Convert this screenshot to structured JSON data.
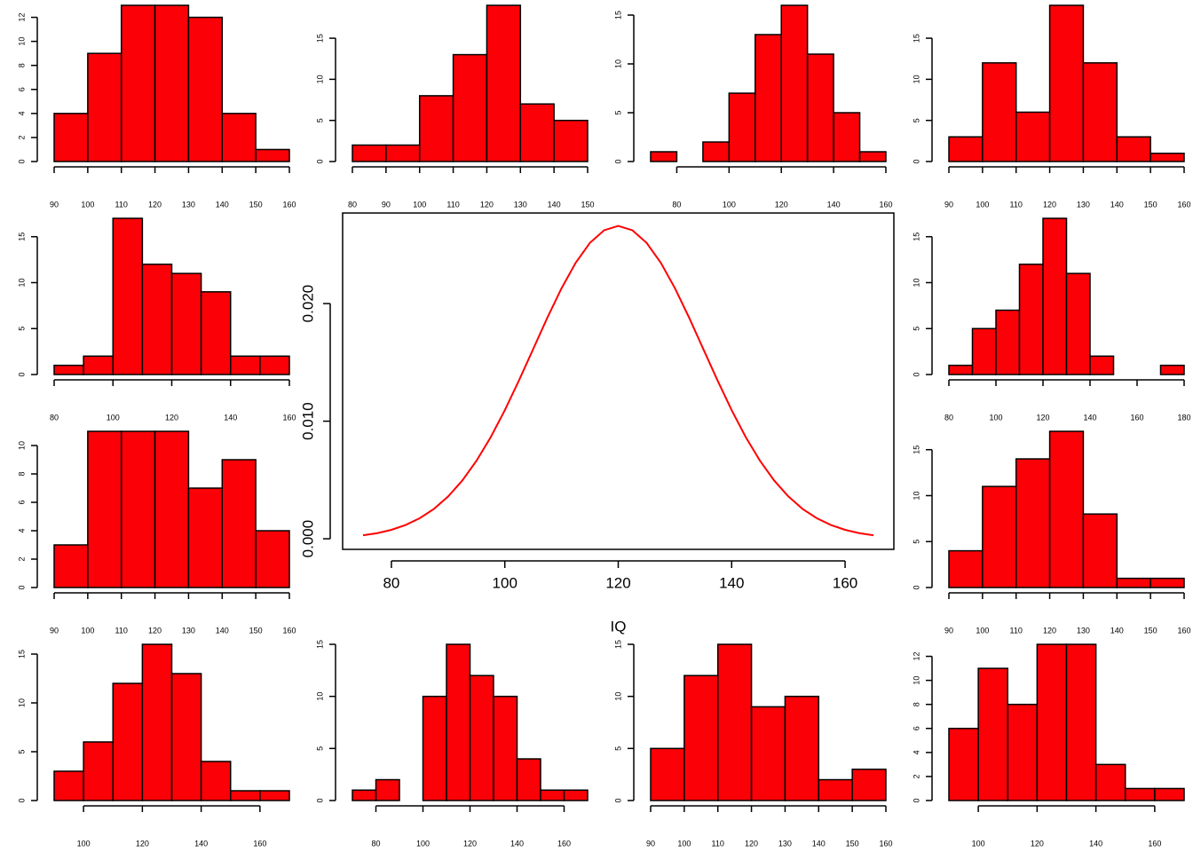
{
  "chart_data": [
    {
      "type": "histogram",
      "bins": [
        90,
        100,
        110,
        120,
        130,
        140,
        150,
        160
      ],
      "values": [
        4,
        9,
        13,
        13,
        12,
        4,
        1
      ],
      "color": "#fb0007",
      "xlim": [
        90,
        160
      ],
      "xticks": [
        90,
        100,
        110,
        120,
        130,
        140,
        150,
        160
      ],
      "ylim": [
        0,
        13
      ],
      "yticks": [
        0,
        2,
        4,
        6,
        8,
        10,
        12
      ]
    },
    {
      "type": "histogram",
      "bins": [
        80,
        90,
        100,
        110,
        120,
        130,
        140,
        150
      ],
      "values": [
        2,
        2,
        8,
        13,
        19,
        7,
        5
      ],
      "color": "#fb0007",
      "xlim": [
        80,
        150
      ],
      "xticks": [
        80,
        90,
        100,
        110,
        120,
        130,
        140,
        150
      ],
      "ylim": [
        0,
        19
      ],
      "yticks": [
        0,
        5,
        10,
        15
      ]
    },
    {
      "type": "histogram",
      "bins": [
        70,
        80,
        90,
        100,
        110,
        120,
        130,
        140,
        150,
        160
      ],
      "values": [
        1,
        0,
        2,
        7,
        13,
        16,
        11,
        5,
        1
      ],
      "color": "#fb0007",
      "xlim": [
        70,
        160
      ],
      "xticks": [
        80,
        100,
        120,
        140,
        160
      ],
      "ylim": [
        0,
        16
      ],
      "yticks": [
        0,
        5,
        10,
        15
      ]
    },
    {
      "type": "histogram",
      "bins": [
        90,
        100,
        110,
        120,
        130,
        140,
        150,
        160
      ],
      "values": [
        3,
        12,
        6,
        19,
        12,
        3,
        1
      ],
      "color": "#fb0007",
      "xlim": [
        90,
        160
      ],
      "xticks": [
        90,
        100,
        110,
        120,
        130,
        140,
        150,
        160
      ],
      "ylim": [
        0,
        19
      ],
      "yticks": [
        0,
        5,
        10,
        15
      ]
    },
    {
      "type": "histogram",
      "bins": [
        80,
        90,
        100,
        110,
        120,
        130,
        140,
        150,
        160
      ],
      "values": [
        1,
        2,
        17,
        12,
        11,
        9,
        2,
        2
      ],
      "color": "#fb0007",
      "xlim": [
        80,
        160
      ],
      "xticks": [
        80,
        100,
        120,
        140,
        160
      ],
      "ylim": [
        0,
        17
      ],
      "yticks": [
        0,
        5,
        10,
        15
      ]
    },
    {
      "type": "line",
      "x": [
        75,
        77.5,
        80,
        82.5,
        85,
        87.5,
        90,
        92.5,
        95,
        97.5,
        100,
        102.5,
        105,
        107.5,
        110,
        112.5,
        115,
        117.5,
        120,
        122.5,
        125,
        127.5,
        130,
        132.5,
        135,
        137.5,
        140,
        142.5,
        145,
        147.5,
        150,
        152.5,
        155,
        157.5,
        160,
        162.5,
        165
      ],
      "values": [
        0.0003,
        0.00048,
        0.00076,
        0.00117,
        0.00175,
        0.00254,
        0.0036,
        0.00495,
        0.00663,
        0.00863,
        0.01093,
        0.01347,
        0.01613,
        0.0188,
        0.0213,
        0.02347,
        0.02516,
        0.02623,
        0.0266,
        0.02623,
        0.02516,
        0.02347,
        0.0213,
        0.0188,
        0.01613,
        0.01347,
        0.01093,
        0.00863,
        0.00663,
        0.00495,
        0.0036,
        0.00254,
        0.00175,
        0.00117,
        0.00076,
        0.00048,
        0.0003
      ],
      "color": "#ff0000",
      "xlim": [
        71.4,
        168.6
      ],
      "xticks": [
        80,
        100,
        120,
        140,
        160
      ],
      "ylim": [
        -0.0009,
        0.0277
      ],
      "yticks": [
        {
          "value": 0,
          "label": "0.000"
        },
        {
          "value": 0.01,
          "label": "0.010"
        },
        {
          "value": 0.02,
          "label": "0.020"
        }
      ],
      "xlabel": "IQ"
    },
    {
      "type": "histogram",
      "bins": [
        80,
        90,
        100,
        110,
        120,
        130,
        140,
        150,
        160,
        170,
        180
      ],
      "values": [
        1,
        5,
        7,
        12,
        17,
        11,
        2,
        0,
        0,
        1
      ],
      "color": "#fb0007",
      "xlim": [
        80,
        180
      ],
      "xticks": [
        80,
        100,
        120,
        140,
        160,
        180
      ],
      "ylim": [
        0,
        17
      ],
      "yticks": [
        0,
        5,
        10,
        15
      ]
    },
    {
      "type": "histogram",
      "bins": [
        90,
        100,
        110,
        120,
        130,
        140,
        150,
        160
      ],
      "values": [
        3,
        11,
        11,
        11,
        7,
        9,
        4
      ],
      "color": "#fb0007",
      "xlim": [
        90,
        160
      ],
      "xticks": [
        90,
        100,
        110,
        120,
        130,
        140,
        150,
        160
      ],
      "ylim": [
        0,
        11
      ],
      "yticks": [
        0,
        2,
        4,
        6,
        8,
        10
      ]
    },
    {
      "type": "histogram",
      "bins": [
        90,
        100,
        110,
        120,
        130,
        140,
        150,
        160
      ],
      "values": [
        4,
        11,
        14,
        17,
        8,
        1,
        1
      ],
      "color": "#fb0007",
      "xlim": [
        90,
        160
      ],
      "xticks": [
        90,
        100,
        110,
        120,
        130,
        140,
        150,
        160
      ],
      "ylim": [
        0,
        17
      ],
      "yticks": [
        0,
        5,
        10,
        15
      ]
    },
    {
      "type": "histogram",
      "bins": [
        90,
        100,
        110,
        120,
        130,
        140,
        150,
        160,
        170
      ],
      "values": [
        3,
        6,
        12,
        16,
        13,
        4,
        1,
        1
      ],
      "color": "#fb0007",
      "xlim": [
        90,
        170
      ],
      "xticks": [
        100,
        120,
        140,
        160
      ],
      "ylim": [
        0,
        16
      ],
      "yticks": [
        0,
        5,
        10,
        15
      ]
    },
    {
      "type": "histogram",
      "bins": [
        70,
        80,
        90,
        100,
        110,
        120,
        130,
        140,
        150,
        160,
        170
      ],
      "values": [
        1,
        2,
        0,
        10,
        15,
        12,
        10,
        4,
        1,
        1
      ],
      "color": "#fb0007",
      "xlim": [
        70,
        170
      ],
      "xticks": [
        80,
        100,
        120,
        140,
        160
      ],
      "ylim": [
        0,
        15
      ],
      "yticks": [
        0,
        5,
        10,
        15
      ]
    },
    {
      "type": "histogram",
      "bins": [
        90,
        100,
        110,
        120,
        130,
        140,
        150,
        160
      ],
      "values": [
        5,
        12,
        15,
        9,
        10,
        2,
        3
      ],
      "color": "#fb0007",
      "xlim": [
        90,
        160
      ],
      "xticks": [
        90,
        100,
        110,
        120,
        130,
        140,
        150,
        160
      ],
      "ylim": [
        0,
        15
      ],
      "yticks": [
        0,
        5,
        10,
        15
      ]
    },
    {
      "type": "histogram",
      "bins": [
        90,
        100,
        110,
        120,
        130,
        140,
        150,
        160,
        170
      ],
      "values": [
        6,
        11,
        8,
        13,
        13,
        3,
        1,
        1
      ],
      "color": "#fb0007",
      "xlim": [
        90,
        170
      ],
      "xticks": [
        100,
        120,
        140,
        160
      ],
      "ylim": [
        0,
        13
      ],
      "yticks": [
        0,
        2,
        4,
        6,
        8,
        10,
        12
      ]
    }
  ]
}
